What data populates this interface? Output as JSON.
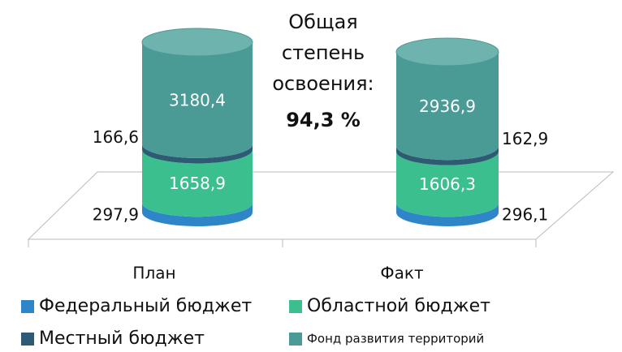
{
  "chart_data": {
    "type": "bar",
    "stacked": true,
    "categories": [
      "План",
      "Факт"
    ],
    "series": [
      {
        "name": "Федеральный бюджет",
        "color": "#2e86c9",
        "values": [
          297.9,
          296.1
        ],
        "value_labels": [
          "297,9",
          "296,1"
        ]
      },
      {
        "name": "Областной бюджет",
        "color": "#3cbf8f",
        "values": [
          1658.9,
          1606.3
        ],
        "value_labels": [
          "1658,9",
          "1606,3"
        ]
      },
      {
        "name": "Местный бюджет",
        "color": "#2f5a73",
        "values": [
          166.6,
          162.9
        ],
        "value_labels": [
          "166,6",
          "162,9"
        ]
      },
      {
        "name": "Фонд развития территорий",
        "color": "#4a9a96",
        "values": [
          3180.4,
          2936.9
        ],
        "value_labels": [
          "3180,4",
          "2936,9"
        ]
      }
    ],
    "annotation": "Общая степень освоения:",
    "annotation_value": "94,3 %"
  }
}
